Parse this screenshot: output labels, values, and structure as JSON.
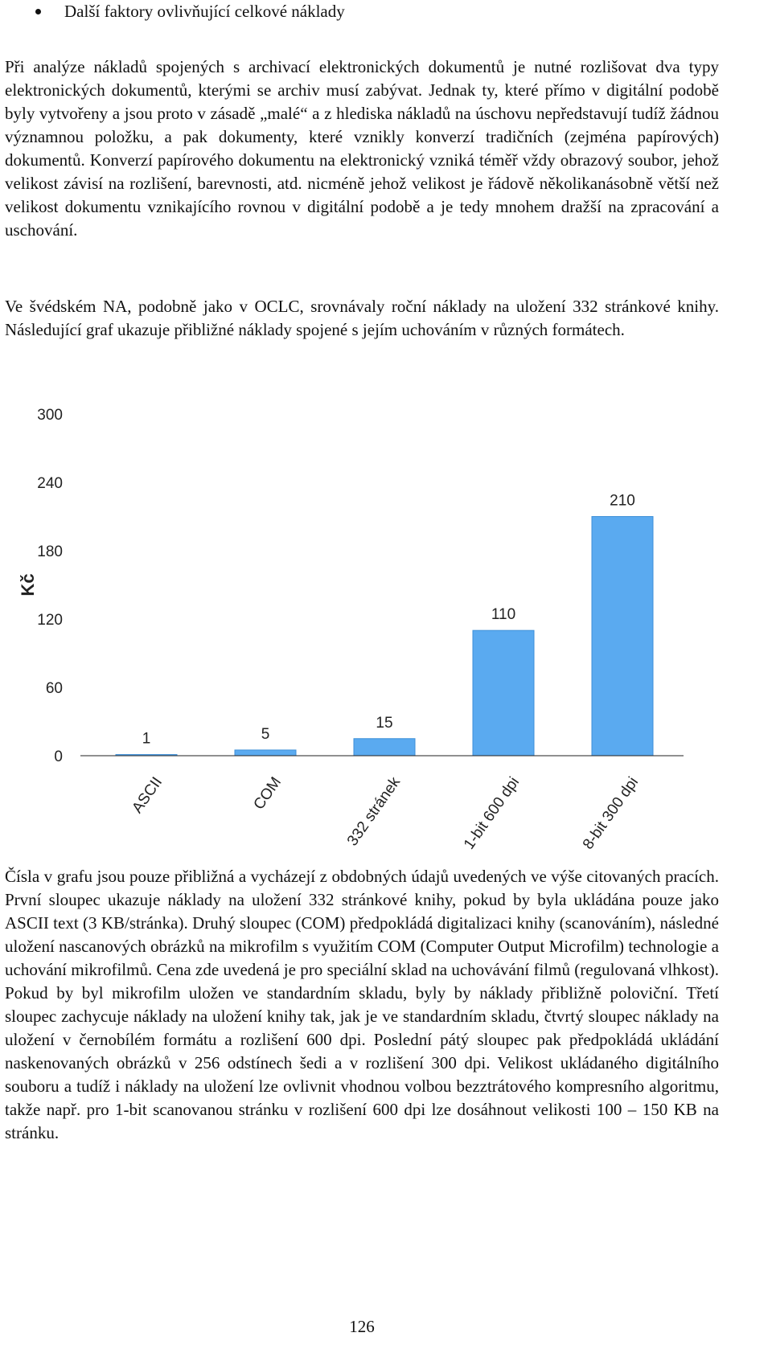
{
  "bullet": {
    "text": "Další faktory ovlivňující celkové náklady"
  },
  "paragraphs": {
    "p1": "Při analýze nákladů spojených s archivací elektronických dokumentů je nutné rozlišovat dva typy elektronických dokumentů, kterými se archiv musí zabývat. Jednak ty, které přímo v digitální podobě byly vytvořeny a jsou proto v zásadě „malé“ a z hlediska nákladů na úschovu nepředstavují tudíž žádnou významnou položku, a pak dokumenty, které vznikly konverzí tradičních (zejména papírových) dokumentů. Konverzí papírového dokumentu na elektronický vzniká téměř vždy obrazový soubor, jehož velikost závisí na rozlišení, barevnosti, atd. nicméně jehož velikost je řádově několikanásobně větší než velikost dokumentu vznikajícího rovnou v digitální podobě a je tedy mnohem dražší na zpracování a uschování.",
    "p2": "Ve švédském NA, podobně jako v OCLC, srovnávaly roční náklady na uložení 332 stránkové knihy. Následující graf ukazuje přibližné náklady spojené s jejím uchováním v různých formátech.",
    "p3": "Čísla v grafu jsou pouze přibližná a vycházejí z obdobných údajů uvedených ve výše citovaných pracích. První sloupec ukazuje náklady na uložení 332 stránkové knihy, pokud by byla ukládána pouze jako ASCII text (3 KB/stránka). Druhý sloupec (COM) předpokládá digitalizaci knihy (scanováním), následné uložení nascanových obrázků na mikrofilm s využitím COM (Computer Output Microfilm) technologie a uchování mikrofilmů. Cena zde uvedená je pro speciální sklad na uchovávání filmů (regulovaná vlhkost). Pokud by byl mikrofilm uložen ve standardním skladu, byly by náklady přibližně poloviční. Třetí sloupec zachycuje náklady na uložení knihy tak, jak je ve standardním skladu, čtvrtý sloupec náklady na uložení v černobílém formátu a rozlišení 600 dpi. Poslední pátý sloupec pak předpokládá ukládání naskenovaných obrázků v 256 odstínech šedi a v rozlišení 300 dpi. Velikost ukládaného digitálního souboru a tudíž i náklady na uložení lze ovlivnit vhodnou volbou bezztrátového kompresního algoritmu, takže např. pro 1-bit scanovanou stránku v rozlišení 600 dpi lze dosáhnout velikosti 100 – 150 KB na stránku."
  },
  "chart_data": {
    "type": "bar",
    "title": "",
    "xlabel": "",
    "ylabel": "Kč",
    "categories": [
      "ASCII",
      "COM",
      "332 stránek",
      "1-bit 600 dpi",
      "8-bit 300 dpi"
    ],
    "values": [
      1,
      5,
      15,
      110,
      210
    ],
    "value_labels": [
      "1",
      "5",
      "15",
      "110",
      "210"
    ],
    "ylim": [
      0,
      300
    ],
    "yticks": [
      0,
      60,
      120,
      180,
      240,
      300
    ],
    "ytick_labels": [
      "0",
      "60",
      "120",
      "180",
      "240",
      "300"
    ],
    "grid": false,
    "legend": "none",
    "bar_color": "#5aaaf0",
    "bar_edge_color": "#3d8fd8",
    "axis_color": "#222222"
  },
  "page": {
    "number": "126"
  }
}
